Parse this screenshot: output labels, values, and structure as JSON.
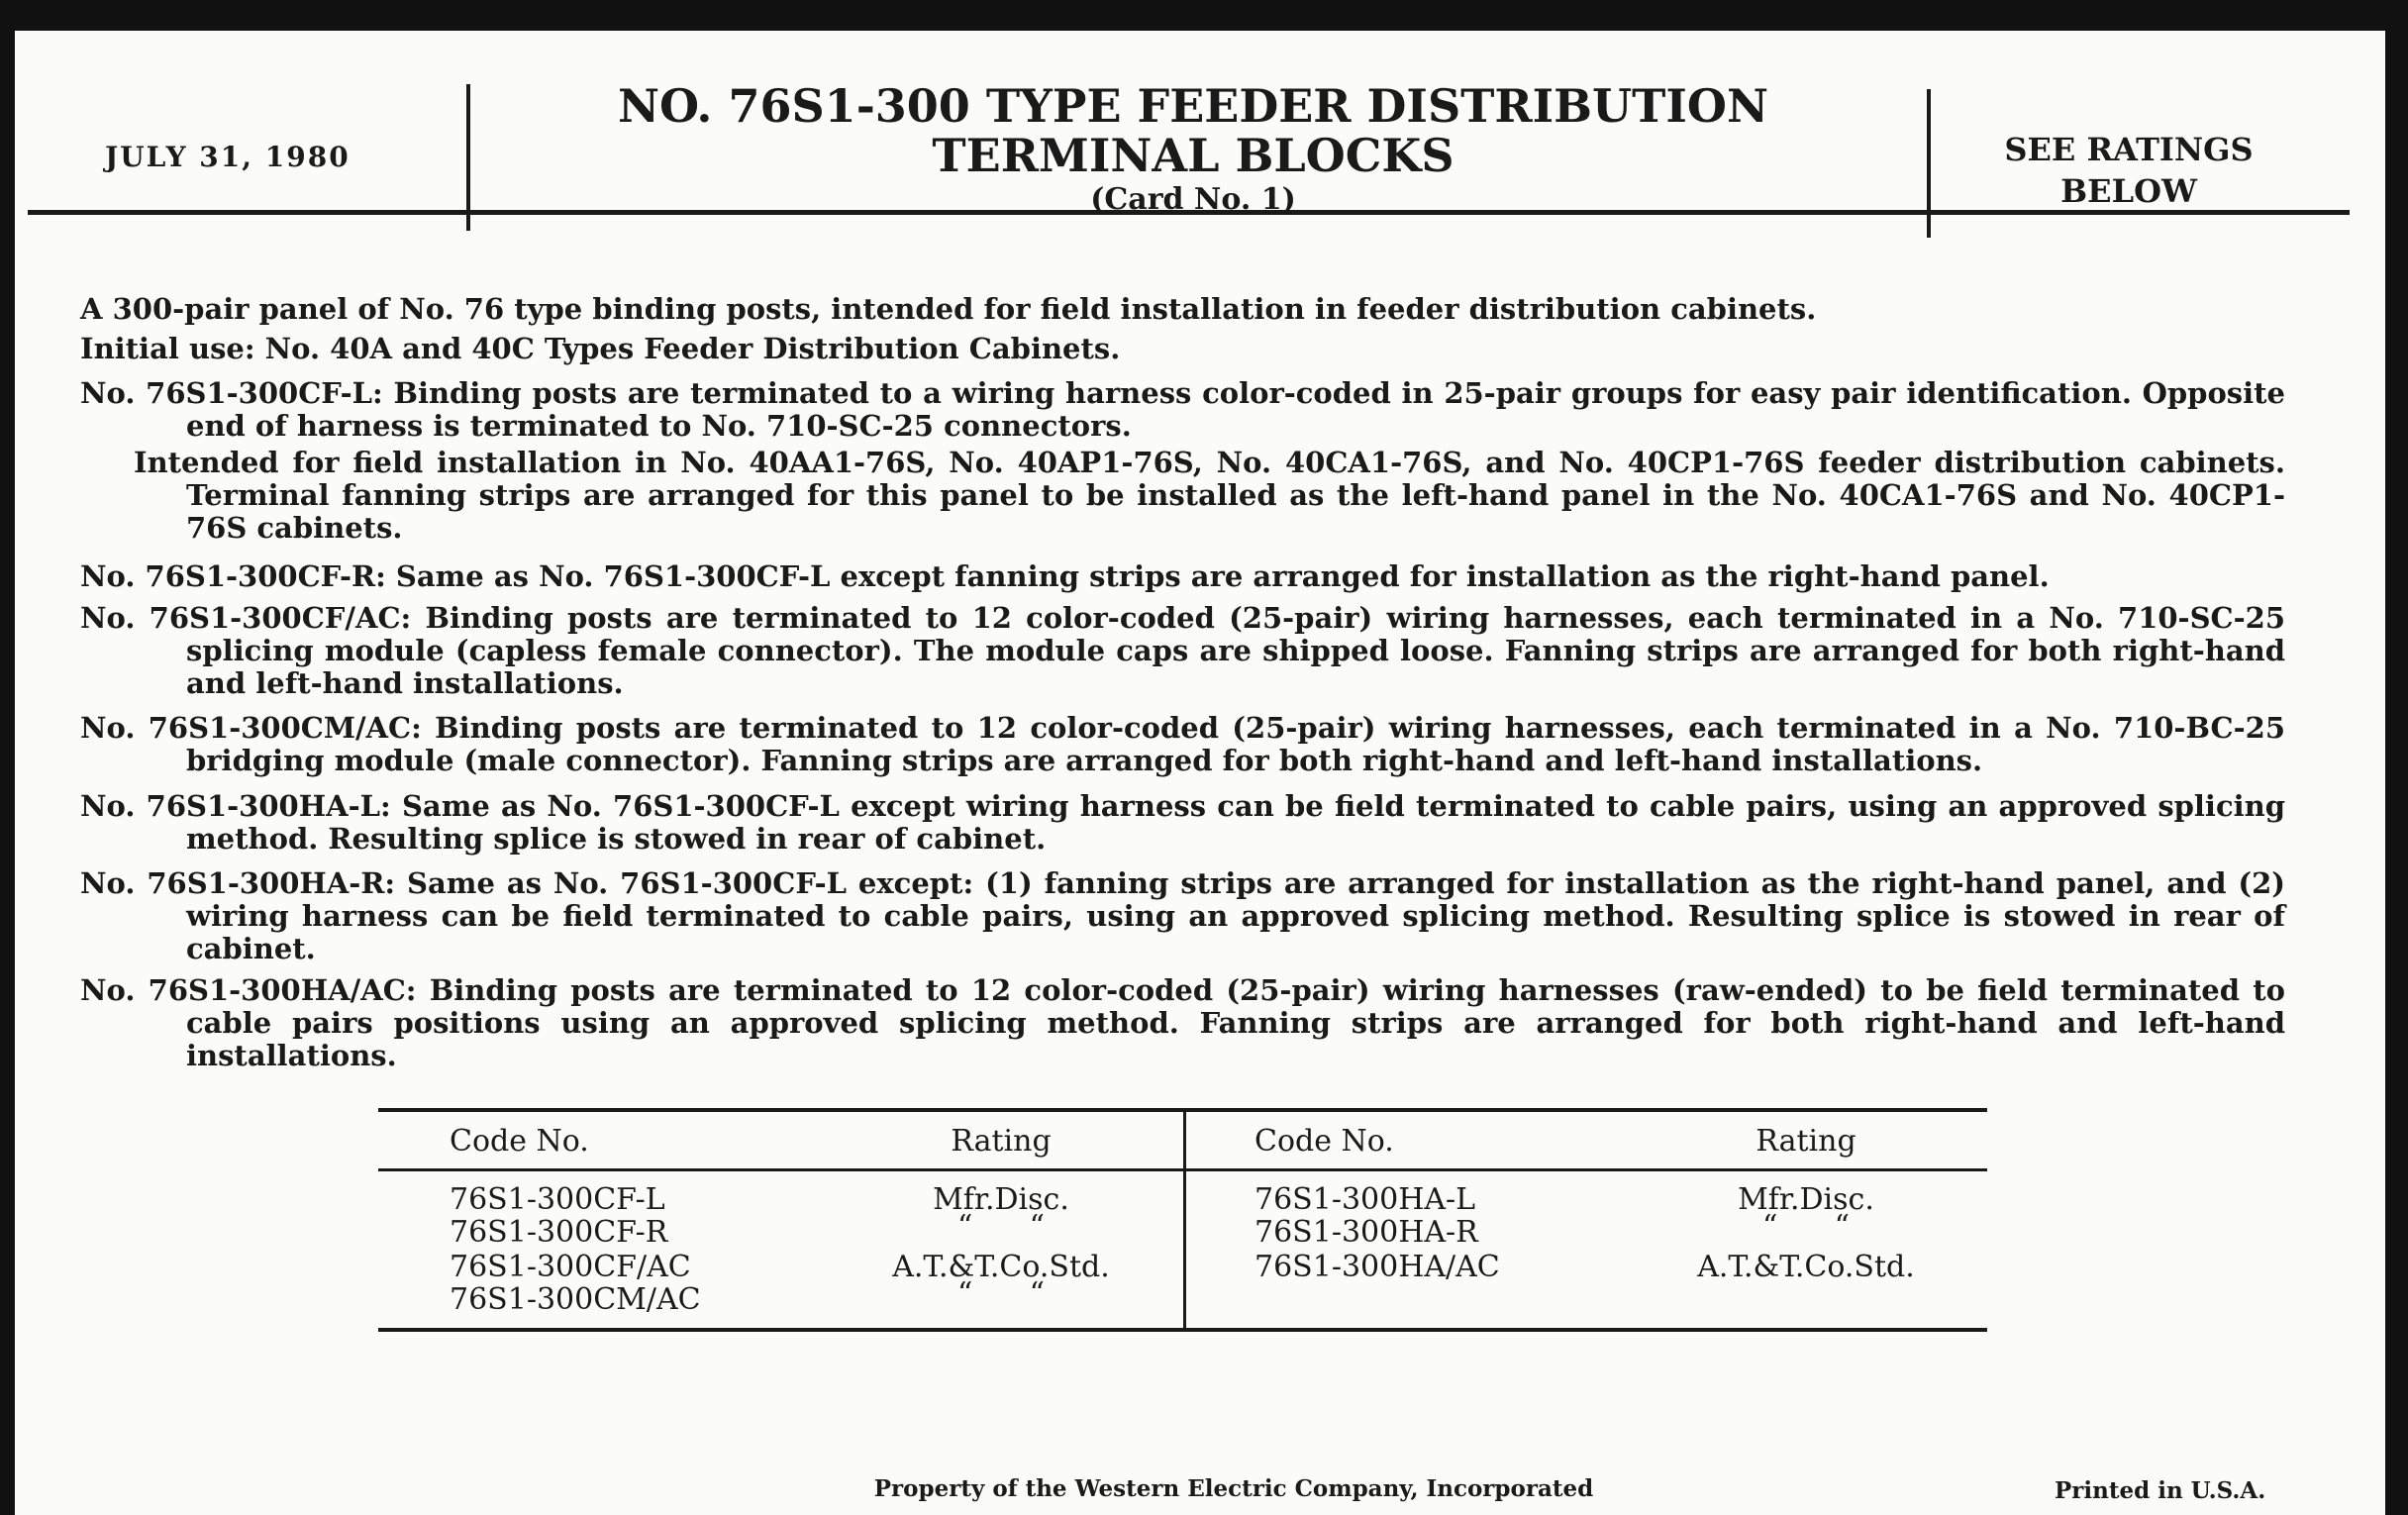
{
  "header": {
    "date": "JULY 31, 1980",
    "title_line1": "NO. 76S1-300 TYPE FEEDER DISTRIBUTION",
    "title_line2": "TERMINAL BLOCKS",
    "card": "(Card No. 1)",
    "ratings_line1": "SEE RATINGS",
    "ratings_line2": "BELOW"
  },
  "paragraphs": [
    "A 300-pair panel of No. 76 type binding posts, intended for field installation in feeder distribution cabinets.",
    "Initial use: No. 40A and 40C Types Feeder Distribution Cabinets.",
    "No. 76S1-300CF-L: Binding posts are terminated to a wiring harness color-coded in 25-pair groups for easy pair identification. Opposite end of harness is terminated to No. 710-SC-25 connectors.",
    "Intended for field installation in No. 40AA1-76S, No. 40AP1-76S, No. 40CA1-76S, and No. 40CP1-76S feeder distribution cabinets. Terminal fanning strips are arranged for this panel to be installed as the left-hand panel in the No. 40CA1-76S and No. 40CP1-76S cabinets.",
    "No. 76S1-300CF-R: Same as No. 76S1-300CF-L except fanning strips are arranged for installation as the right-hand panel.",
    "No. 76S1-300CF/AC: Binding posts are terminated to 12 color-coded (25-pair) wiring harnesses, each terminated in a No. 710-SC-25 splicing module (capless female connector). The module caps are shipped loose. Fanning strips are arranged for both right-hand and left-hand installations.",
    "No. 76S1-300CM/AC: Binding posts are terminated to 12 color-coded (25-pair) wiring harnesses, each terminated in a No. 710-BC-25 bridging module (male connector). Fanning strips are arranged for both right-hand and left-hand installations.",
    "No. 76S1-300HA-L: Same as No. 76S1-300CF-L except wiring harness can be field terminated to cable pairs, using an approved splicing method. Resulting splice is stowed in rear of cabinet.",
    "No. 76S1-300HA-R: Same as No. 76S1-300CF-L except: (1) fanning strips are arranged for installation as the right-hand panel, and (2) wiring harness can be field terminated to cable pairs, using an approved splicing method. Resulting splice is stowed in rear of cabinet.",
    "No. 76S1-300HA/AC: Binding posts are terminated to 12 color-coded (25-pair) wiring harnesses (raw-ended) to be field terminated to cable pairs positions using an approved splicing method. Fanning strips are arranged for both right-hand and left-hand installations."
  ],
  "table": {
    "headers": [
      "Code No.",
      "Rating",
      "Code No.",
      "Rating"
    ],
    "left": [
      {
        "code": "76S1-300CF-L",
        "rating": "Mfr.Disc."
      },
      {
        "code": "76S1-300CF-R",
        "rating": "“      “"
      },
      {
        "code": "76S1-300CF/AC",
        "rating": "A.T.&T.Co.Std."
      },
      {
        "code": "76S1-300CM/AC",
        "rating": "“      “"
      }
    ],
    "right": [
      {
        "code": "76S1-300HA-L",
        "rating": "Mfr.Disc."
      },
      {
        "code": "76S1-300HA-R",
        "rating": "“      “"
      },
      {
        "code": "76S1-300HA/AC",
        "rating": "A.T.&T.Co.Std."
      }
    ]
  },
  "footer": {
    "property": "Property of the Western Electric Company, Incorporated",
    "printed": "Printed in U.S.A."
  }
}
